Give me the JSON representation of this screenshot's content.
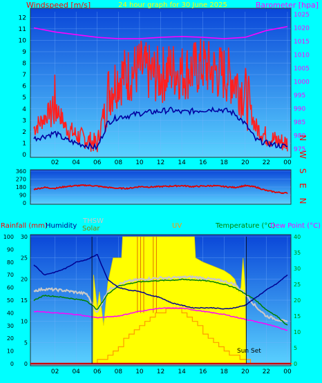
{
  "colors": {
    "page_bg": "#00ffff",
    "panel_top": "#0a46d8",
    "panel_bottom": "#5ad2ff",
    "wind": "#ff2020",
    "wind_avg": "#0000a0",
    "barometer": "#ff00ff",
    "direction": "#e00000",
    "humidity": "#000090",
    "thsw": "#c8c8c8",
    "solar": "#ffff00",
    "uv": "#ff9900",
    "temperature": "#008000",
    "dew_point": "#ff00ff",
    "rain": "#d00000",
    "axis_text": "#000000",
    "right_axis_text": "#ff00ff",
    "title_text": "#ffff00",
    "left_title": "#ff0000"
  },
  "chart_data": [
    {
      "type": "line",
      "title": "24 hour graph for  30 June 2025",
      "ylabel": "Windspeed [m/s]",
      "ylabel_right": "Barometer [hpa]",
      "x_ticks": [
        "02",
        "04",
        "06",
        "08",
        "10",
        "12",
        "14",
        "16",
        "18",
        "20",
        "22",
        "00"
      ],
      "x_range": [
        0,
        24
      ],
      "ylim": [
        0,
        12.5
      ],
      "y_ticks": [
        "0",
        "1",
        "2",
        "3",
        "4",
        "5",
        "6",
        "7",
        "8",
        "9",
        "10",
        "11",
        "12"
      ],
      "ylim_right": [
        973,
        1026
      ],
      "y_ticks_right": [
        "975",
        "980",
        "985",
        "990",
        "995",
        "1000",
        "1005",
        "1010",
        "1015",
        "1020",
        "1025"
      ],
      "series": [
        {
          "name": "Windspeed",
          "x": [
            0,
            1,
            2,
            3,
            4,
            5,
            6,
            7,
            8,
            9,
            10,
            11,
            12,
            13,
            14,
            15,
            16,
            17,
            18,
            19,
            20,
            21,
            22,
            23,
            24
          ],
          "values": [
            2.3,
            3.2,
            4.5,
            2.4,
            1.7,
            1.3,
            0.9,
            5.4,
            6.8,
            7.0,
            7.6,
            7.1,
            6.9,
            7.5,
            7.2,
            7.4,
            7.8,
            7.3,
            7.1,
            6.6,
            5.3,
            2.4,
            1.6,
            1.2,
            1.0
          ]
        },
        {
          "name": "Average",
          "x": [
            0,
            1,
            2,
            3,
            4,
            5,
            6,
            7,
            8,
            9,
            10,
            11,
            12,
            13,
            14,
            15,
            16,
            17,
            18,
            19,
            20,
            21,
            22,
            23,
            24
          ],
          "values": [
            1.4,
            1.6,
            1.9,
            1.3,
            1.0,
            0.8,
            0.6,
            2.8,
            3.3,
            3.4,
            3.6,
            3.7,
            3.8,
            3.9,
            3.7,
            3.8,
            3.9,
            4.0,
            3.9,
            3.6,
            2.7,
            1.3,
            1.0,
            0.8,
            0.7
          ]
        },
        {
          "name": "Barometer",
          "x": [
            0,
            2,
            4,
            6,
            8,
            10,
            12,
            14,
            16,
            18,
            20,
            22,
            24
          ],
          "values": [
            1020,
            1018.5,
            1017.5,
            1016.5,
            1016,
            1016,
            1016.5,
            1016.8,
            1016.5,
            1016,
            1016.5,
            1019,
            1020.5
          ]
        }
      ]
    },
    {
      "type": "scatter",
      "ylabel_right": "N W S E N",
      "y_ticks": [
        "0",
        "90",
        "180",
        "270",
        "360"
      ],
      "ylim": [
        0,
        360
      ],
      "x_range": [
        0,
        24
      ],
      "series": [
        {
          "name": "Wind direction",
          "x": [
            0,
            1,
            2,
            3,
            4,
            5,
            6,
            7,
            8,
            9,
            10,
            11,
            12,
            13,
            14,
            15,
            16,
            17,
            18,
            19,
            20,
            21,
            22,
            23,
            24
          ],
          "values": [
            155,
            175,
            165,
            185,
            195,
            200,
            190,
            175,
            165,
            165,
            185,
            180,
            185,
            190,
            195,
            185,
            190,
            195,
            185,
            175,
            195,
            180,
            140,
            120,
            110
          ]
        }
      ]
    },
    {
      "type": "line",
      "labels": [
        "Rainfall (mm)",
        "Humidity",
        "THSW",
        "Solar",
        "UV",
        "Temperature (°C)",
        "Dew Point (°C)"
      ],
      "x_ticks": [
        "02",
        "04",
        "06",
        "08",
        "10",
        "12",
        "14",
        "16",
        "18",
        "20",
        "22",
        "00"
      ],
      "x_range": [
        0,
        24
      ],
      "y_ticks_rain": [
        "0",
        "10",
        "20",
        "30",
        "40",
        "50",
        "60",
        "70",
        "80",
        "90",
        "100"
      ],
      "ylim_rain": [
        0,
        100
      ],
      "y_ticks_uv": [
        "0",
        "5",
        "10",
        "15",
        "20",
        "25",
        "30"
      ],
      "ylim_uv": [
        0,
        30
      ],
      "y_ticks_temp": [
        "0",
        "5",
        "10",
        "15",
        "20",
        "25",
        "30",
        "35",
        "40"
      ],
      "ylim_temp": [
        0,
        40
      ],
      "annotation": "Sun Set",
      "series": [
        {
          "name": "Humidity",
          "x": [
            0,
            1,
            2,
            3,
            4,
            5,
            6,
            7,
            8,
            9,
            10,
            11,
            12,
            13,
            14,
            15,
            16,
            17,
            18,
            19,
            20,
            21,
            22,
            23,
            24
          ],
          "values": [
            78,
            70,
            72,
            75,
            80,
            82,
            86,
            66,
            60,
            58,
            57,
            54,
            52,
            48,
            46,
            44,
            44,
            44,
            43,
            44,
            46,
            52,
            58,
            63,
            70
          ]
        },
        {
          "name": "THSW",
          "x": [
            0,
            1,
            2,
            3,
            4,
            5,
            6,
            7,
            8,
            9,
            10,
            11,
            12,
            13,
            14,
            15,
            16,
            17,
            18,
            19,
            20,
            21,
            22,
            23,
            24
          ],
          "values": [
            23,
            23.5,
            23.3,
            23,
            22.5,
            22,
            16,
            23,
            25,
            26,
            26.5,
            26.8,
            27,
            27,
            27.2,
            27.3,
            27,
            26.5,
            26,
            25,
            22,
            18,
            15,
            14,
            13
          ]
        },
        {
          "name": "Temperature",
          "x": [
            0,
            1,
            2,
            3,
            4,
            5,
            6,
            7,
            8,
            9,
            10,
            11,
            12,
            13,
            14,
            15,
            16,
            17,
            18,
            19,
            20,
            21,
            22,
            23,
            24
          ],
          "values": [
            20,
            21.5,
            21.2,
            20.8,
            20.3,
            19.8,
            17,
            22,
            24.5,
            25.2,
            25.8,
            26,
            26.2,
            26.3,
            26.5,
            26.4,
            26.2,
            25.8,
            25,
            24,
            22,
            20,
            17,
            15,
            12
          ]
        },
        {
          "name": "Dew Point",
          "x": [
            0,
            2,
            4,
            6,
            8,
            10,
            12,
            14,
            16,
            18,
            20,
            22,
            24
          ],
          "values": [
            16.5,
            16,
            15.5,
            14.5,
            15,
            16.5,
            17.5,
            17.5,
            16.5,
            15.5,
            14,
            12.5,
            10.5
          ]
        },
        {
          "name": "Solar",
          "x": [
            0,
            5.6,
            5.65,
            6,
            6.2,
            6.6,
            7,
            7.5,
            8.3,
            8.4,
            15.2,
            15.3,
            16,
            17,
            18,
            18.6,
            19,
            19.4,
            19.6,
            19.8,
            20,
            20.1,
            24
          ],
          "values": [
            0,
            0,
            21,
            13,
            17,
            9,
            19,
            25,
            25,
            30,
            30,
            25,
            24,
            23,
            22,
            21,
            20,
            17,
            18,
            25,
            18,
            0,
            0
          ]
        },
        {
          "name": "UV",
          "x": [
            0,
            5.5,
            6,
            7,
            8,
            9,
            10,
            11,
            12,
            13,
            14,
            15,
            16,
            17,
            18,
            19,
            20,
            24
          ],
          "values": [
            0,
            0,
            0.5,
            2,
            4,
            7,
            9,
            11,
            12,
            13,
            12,
            10,
            7,
            5,
            3,
            1.5,
            0.5,
            0
          ]
        },
        {
          "name": "Rainfall",
          "x": [
            0,
            24
          ],
          "values": [
            0,
            0
          ]
        }
      ]
    }
  ]
}
